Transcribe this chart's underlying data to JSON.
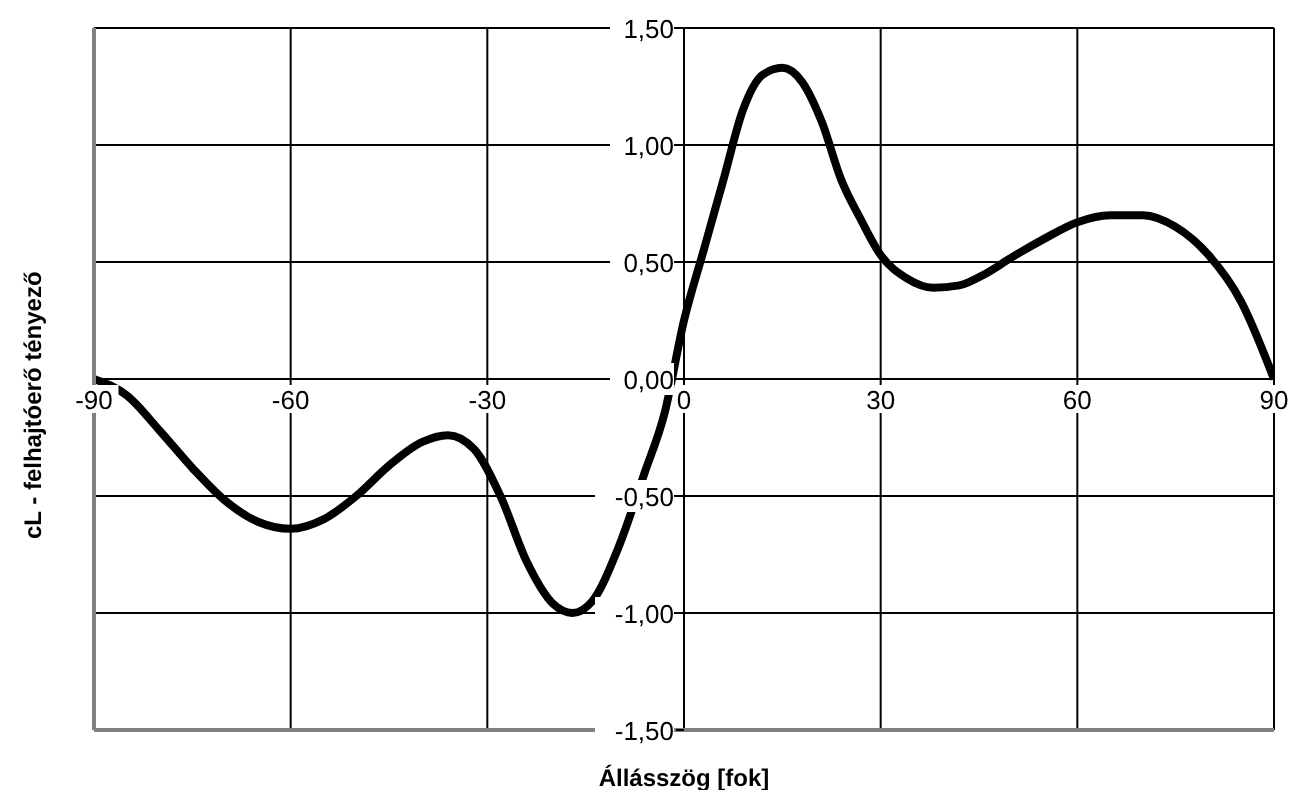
{
  "chart_data": {
    "type": "line",
    "xlabel": "Állásszög [fok]",
    "ylabel": "cL - felhajtóerő tényező",
    "x": [
      -90,
      -85,
      -80,
      -75,
      -70,
      -65,
      -60,
      -55,
      -50,
      -45,
      -40,
      -36,
      -32,
      -28,
      -24,
      -20,
      -17,
      -14,
      -10,
      -6,
      -3,
      0,
      3,
      6,
      9,
      12,
      15,
      18,
      21,
      24,
      27,
      30,
      34,
      38,
      42,
      46,
      50,
      55,
      60,
      65,
      70,
      75,
      80,
      85,
      90
    ],
    "series": [
      {
        "color": "#000000",
        "values": [
          0,
          -0.07,
          -0.22,
          -0.38,
          -0.52,
          -0.61,
          -0.64,
          -0.6,
          -0.5,
          -0.37,
          -0.27,
          -0.24,
          -0.3,
          -0.5,
          -0.78,
          -0.96,
          -1.0,
          -0.95,
          -0.72,
          -0.4,
          -0.15,
          0.25,
          0.55,
          0.85,
          1.15,
          1.3,
          1.33,
          1.27,
          1.1,
          0.85,
          0.68,
          0.53,
          0.43,
          0.39,
          0.4,
          0.45,
          0.52,
          0.6,
          0.67,
          0.7,
          0.7,
          0.65,
          0.53,
          0.33,
          0
        ]
      }
    ],
    "xlim": [
      -90,
      90
    ],
    "xticks": [
      -90,
      -60,
      -30,
      0,
      30,
      60,
      90
    ],
    "ylim": [
      -1.5,
      1.5
    ],
    "yticks": [
      {
        "value": -1.5,
        "label": "-1,50"
      },
      {
        "value": -1,
        "label": "-1,00"
      },
      {
        "value": -0.5,
        "label": "-0,50"
      },
      {
        "value": 0,
        "label": "0,00"
      },
      {
        "value": 0.5,
        "label": "0,50"
      },
      {
        "value": 1,
        "label": "1,00"
      },
      {
        "value": 1.5,
        "label": "1,50"
      }
    ],
    "grid": true,
    "legend": false,
    "marker": "none",
    "line_style": "solid"
  }
}
